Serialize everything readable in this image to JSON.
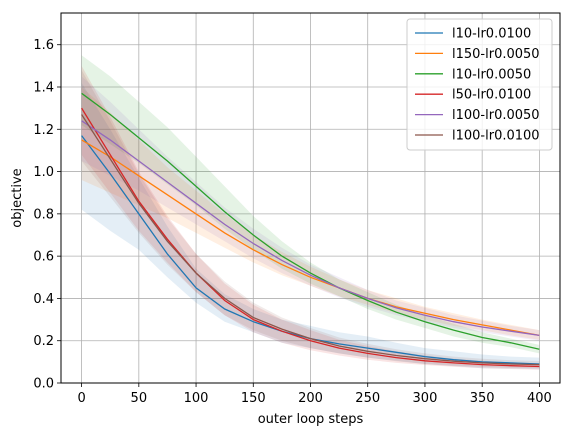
{
  "chart_data": {
    "type": "line",
    "title": "",
    "xlabel": "outer loop steps",
    "ylabel": "objective",
    "xlim": [
      -18,
      418
    ],
    "ylim": [
      0.0,
      1.75
    ],
    "xticks": [
      0,
      50,
      100,
      150,
      200,
      250,
      300,
      350,
      400
    ],
    "yticks": [
      0.0,
      0.2,
      0.4,
      0.6,
      0.8,
      1.0,
      1.2,
      1.4,
      1.6
    ],
    "ytick_labels": [
      "0.0",
      "0.2",
      "0.4",
      "0.6",
      "0.8",
      "1.0",
      "1.2",
      "1.4",
      "1.6"
    ],
    "grid": true,
    "legend_position": "top-right",
    "bands": "shaded mean ± deviation per series",
    "x": [
      0,
      25,
      50,
      75,
      100,
      125,
      150,
      175,
      200,
      225,
      250,
      275,
      300,
      325,
      350,
      375,
      400
    ],
    "series": [
      {
        "name": "l10-lr0.0100",
        "color": "#1f77b4",
        "values": [
          1.17,
          0.99,
          0.8,
          0.61,
          0.45,
          0.35,
          0.29,
          0.245,
          0.21,
          0.185,
          0.165,
          0.145,
          0.125,
          0.11,
          0.1,
          0.095,
          0.09
        ],
        "band_lower": [
          0.82,
          0.72,
          0.63,
          0.5,
          0.38,
          0.29,
          0.24,
          0.19,
          0.165,
          0.14,
          0.12,
          0.105,
          0.09,
          0.08,
          0.07,
          0.068,
          0.065
        ],
        "band_upper": [
          1.42,
          1.2,
          0.97,
          0.74,
          0.54,
          0.42,
          0.35,
          0.3,
          0.27,
          0.24,
          0.22,
          0.19,
          0.165,
          0.15,
          0.135,
          0.125,
          0.12
        ]
      },
      {
        "name": "l150-lr0.0050",
        "color": "#ff7f0e",
        "values": [
          1.15,
          1.07,
          0.98,
          0.89,
          0.8,
          0.71,
          0.63,
          0.56,
          0.5,
          0.45,
          0.4,
          0.36,
          0.33,
          0.3,
          0.275,
          0.25,
          0.225
        ],
        "band_lower": [
          0.96,
          0.9,
          0.84,
          0.78,
          0.71,
          0.64,
          0.57,
          0.51,
          0.46,
          0.41,
          0.37,
          0.33,
          0.3,
          0.27,
          0.25,
          0.225,
          0.205
        ],
        "band_upper": [
          1.4,
          1.28,
          1.15,
          1.02,
          0.91,
          0.8,
          0.7,
          0.62,
          0.55,
          0.49,
          0.44,
          0.4,
          0.36,
          0.33,
          0.3,
          0.275,
          0.25
        ]
      },
      {
        "name": "l10-lr0.0050",
        "color": "#2ca02c",
        "values": [
          1.37,
          1.27,
          1.16,
          1.05,
          0.93,
          0.81,
          0.7,
          0.6,
          0.52,
          0.45,
          0.39,
          0.335,
          0.29,
          0.25,
          0.215,
          0.19,
          0.16
        ],
        "band_lower": [
          1.22,
          1.13,
          1.04,
          0.94,
          0.84,
          0.73,
          0.63,
          0.54,
          0.47,
          0.41,
          0.35,
          0.3,
          0.26,
          0.22,
          0.19,
          0.17,
          0.14
        ],
        "band_upper": [
          1.55,
          1.45,
          1.33,
          1.21,
          1.07,
          0.93,
          0.79,
          0.67,
          0.57,
          0.49,
          0.43,
          0.37,
          0.32,
          0.28,
          0.24,
          0.21,
          0.18
        ]
      },
      {
        "name": "l50-lr0.0100",
        "color": "#d62728",
        "values": [
          1.3,
          1.08,
          0.86,
          0.68,
          0.52,
          0.39,
          0.3,
          0.245,
          0.2,
          0.165,
          0.14,
          0.12,
          0.105,
          0.095,
          0.087,
          0.082,
          0.078
        ],
        "band_lower": [
          1.08,
          0.9,
          0.72,
          0.57,
          0.43,
          0.32,
          0.24,
          0.19,
          0.155,
          0.13,
          0.11,
          0.095,
          0.085,
          0.077,
          0.07,
          0.066,
          0.063
        ],
        "band_upper": [
          1.5,
          1.26,
          1.0,
          0.79,
          0.61,
          0.47,
          0.37,
          0.3,
          0.25,
          0.205,
          0.175,
          0.15,
          0.13,
          0.115,
          0.105,
          0.098,
          0.093
        ]
      },
      {
        "name": "l100-lr0.0050",
        "color": "#9467bd",
        "values": [
          1.24,
          1.15,
          1.05,
          0.95,
          0.85,
          0.75,
          0.66,
          0.58,
          0.51,
          0.45,
          0.4,
          0.355,
          0.32,
          0.29,
          0.265,
          0.245,
          0.225
        ],
        "band_lower": [
          1.05,
          0.98,
          0.91,
          0.83,
          0.75,
          0.67,
          0.59,
          0.52,
          0.46,
          0.405,
          0.36,
          0.32,
          0.29,
          0.26,
          0.24,
          0.22,
          0.2
        ],
        "band_upper": [
          1.45,
          1.33,
          1.2,
          1.07,
          0.95,
          0.83,
          0.73,
          0.64,
          0.56,
          0.5,
          0.44,
          0.39,
          0.355,
          0.32,
          0.295,
          0.27,
          0.25
        ]
      },
      {
        "name": "l100-lr0.0100",
        "color": "#8c564b",
        "values": [
          1.27,
          1.06,
          0.85,
          0.67,
          0.52,
          0.4,
          0.31,
          0.255,
          0.21,
          0.175,
          0.15,
          0.13,
          0.115,
          0.103,
          0.095,
          0.09,
          0.087
        ],
        "band_lower": [
          1.05,
          0.88,
          0.71,
          0.56,
          0.43,
          0.32,
          0.25,
          0.2,
          0.165,
          0.14,
          0.12,
          0.103,
          0.09,
          0.082,
          0.076,
          0.072,
          0.07
        ],
        "band_upper": [
          1.48,
          1.24,
          0.99,
          0.78,
          0.61,
          0.48,
          0.38,
          0.31,
          0.26,
          0.215,
          0.185,
          0.16,
          0.14,
          0.125,
          0.115,
          0.108,
          0.104
        ]
      }
    ]
  }
}
